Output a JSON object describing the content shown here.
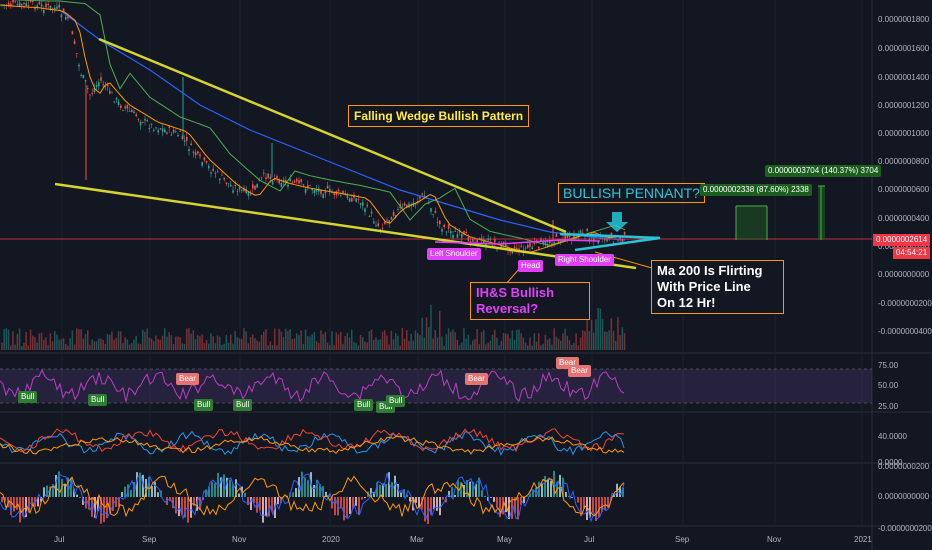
{
  "price_axis": {
    "ticks": [
      "0.0000001800",
      "0.0000001600",
      "0.0000001400",
      "0.0000001200",
      "0.0000001000",
      "0.0000000800",
      "0.0000000600",
      "0.0000000400",
      "0.0000000200",
      "0.0000000000",
      "-0.0000000200",
      "-0.0000000400"
    ],
    "current_price": "0.0000002614",
    "countdown": "04:54:21"
  },
  "rsi_axis": {
    "ticks": [
      "75.00",
      "50.00",
      "25.00"
    ]
  },
  "dmi_axis": {
    "ticks": [
      "40.0000",
      "0.0000"
    ]
  },
  "macd_axis": {
    "ticks": [
      "0.0000000200",
      "0.0000000000",
      "-0.0000000200"
    ]
  },
  "time_axis": {
    "labels": [
      "Jul",
      "Sep",
      "Nov",
      "2020",
      "Mar",
      "May",
      "Jul",
      "Sep",
      "Nov",
      "2021"
    ]
  },
  "annotations": {
    "falling_wedge": "Falling Wedge Bullish Pattern",
    "bullish_pennant": "BULLISH PENNANT?",
    "ihs_reversal_line1": "IH&S Bullish",
    "ihs_reversal_line2": "Reversal?",
    "ma200_line1": "Ma 200 Is Flirting",
    "ma200_line2": "With Price Line",
    "ma200_line3": "On 12 Hr!",
    "left_shoulder": "Left Shoulder",
    "head": "Head",
    "right_shoulder": "Right Shoulder",
    "target1": "0.0000002338 (87.60%) 2338",
    "target2": "0.0000003704 (140.37%) 3704"
  },
  "rsi_signals": {
    "bull": "Bull",
    "bear": "Bear"
  },
  "colors": {
    "background": "#131722",
    "wedge": "#d4d42a",
    "pennant": "#26c6da",
    "annotation_border": "#ff9800",
    "price_line": "#f23645",
    "ma200": "#2962ff",
    "ma_green": "#4caf50",
    "ma_orange": "#ff9800",
    "rsi": "#9c27b0",
    "target_green": "#1b5e20"
  }
}
